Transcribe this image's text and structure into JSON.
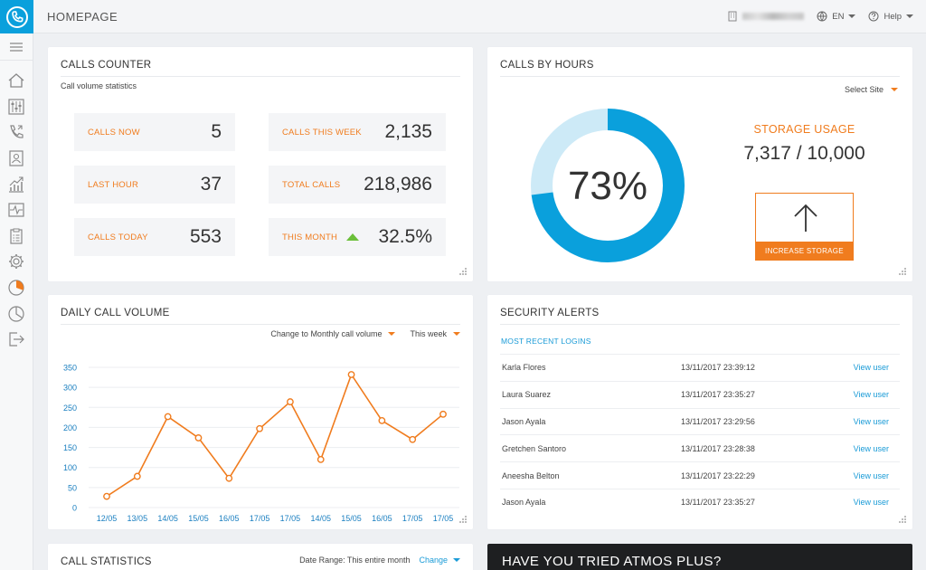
{
  "header": {
    "title": "HOMEPAGE",
    "language": "EN",
    "help": "Help"
  },
  "colors": {
    "accent_orange": "#f07c1e",
    "accent_blue": "#0aa0dc",
    "link_blue": "#1a9bd7",
    "trend_green": "#6bbf3a"
  },
  "sidebar": {
    "icons": [
      "logo-icon",
      "menu-icon",
      "home-icon",
      "mixer-icon",
      "phone-icon",
      "contacts-icon",
      "trend-chart-icon",
      "pulse-icon",
      "clipboard-icon",
      "gear-icon",
      "pie-chart-icon",
      "clock-pie-icon",
      "logout-icon"
    ]
  },
  "calls_counter": {
    "title": "CALLS COUNTER",
    "subtitle": "Call volume statistics",
    "stats": [
      {
        "label": "CALLS NOW",
        "value": "5"
      },
      {
        "label": "CALLS THIS WEEK",
        "value": "2,135"
      },
      {
        "label": "LAST HOUR",
        "value": "37"
      },
      {
        "label": "TOTAL CALLS",
        "value": "218,986"
      },
      {
        "label": "CALLS TODAY",
        "value": "553"
      },
      {
        "label": "THIS MONTH",
        "value": "32.5%"
      }
    ]
  },
  "calls_by_hours": {
    "title": "CALLS BY HOURS",
    "select_site": "Select Site",
    "donut_percent": 73,
    "donut_label": "73%",
    "storage_label": "STORAGE USAGE",
    "storage_value": "7,317 / 10,000",
    "increase_label": "INCREASE STORAGE"
  },
  "daily_call_volume": {
    "title": "DAILY CALL VOLUME",
    "change_label": "Change to Monthly call volume",
    "range_label": "This week"
  },
  "chart_data": {
    "type": "line",
    "title": "",
    "xlabel": "",
    "ylabel": "",
    "categories": [
      "12/05",
      "13/05",
      "14/05",
      "15/05",
      "16/05",
      "17/05",
      "17/05",
      "14/05",
      "15/05",
      "16/05",
      "17/05",
      "17/05"
    ],
    "series": [
      {
        "values": [
          28,
          78,
          227,
          174,
          73,
          197,
          264,
          120,
          332,
          217,
          170,
          233
        ]
      }
    ],
    "ylim": [
      0,
      350
    ],
    "yticks": [
      0,
      50,
      100,
      150,
      200,
      250,
      300,
      350
    ],
    "grid": true,
    "legend": "none"
  },
  "security_alerts": {
    "title": "SECURITY ALERTS",
    "subtitle": "MOST RECENT LOGINS",
    "rows": [
      {
        "name": "Karla Flores",
        "time": "13/11/2017 23:39:12",
        "link": "View user"
      },
      {
        "name": "Laura Suarez",
        "time": "13/11/2017 23:35:27",
        "link": "View user"
      },
      {
        "name": "Jason Ayala",
        "time": "13/11/2017 23:29:56",
        "link": "View user"
      },
      {
        "name": "Gretchen Santoro",
        "time": "13/11/2017 23:28:38",
        "link": "View user"
      },
      {
        "name": "Aneesha Belton",
        "time": "13/11/2017 23:22:29",
        "link": "View user"
      },
      {
        "name": "Jason Ayala",
        "time": "13/11/2017 23:35:27",
        "link": "View user"
      }
    ]
  },
  "call_statistics": {
    "title": "CALL STATISTICS",
    "date_range": "Date Range: This entire month",
    "change": "Change"
  },
  "promo": {
    "title": "HAVE YOU TRIED ATMOS PLUS?"
  }
}
